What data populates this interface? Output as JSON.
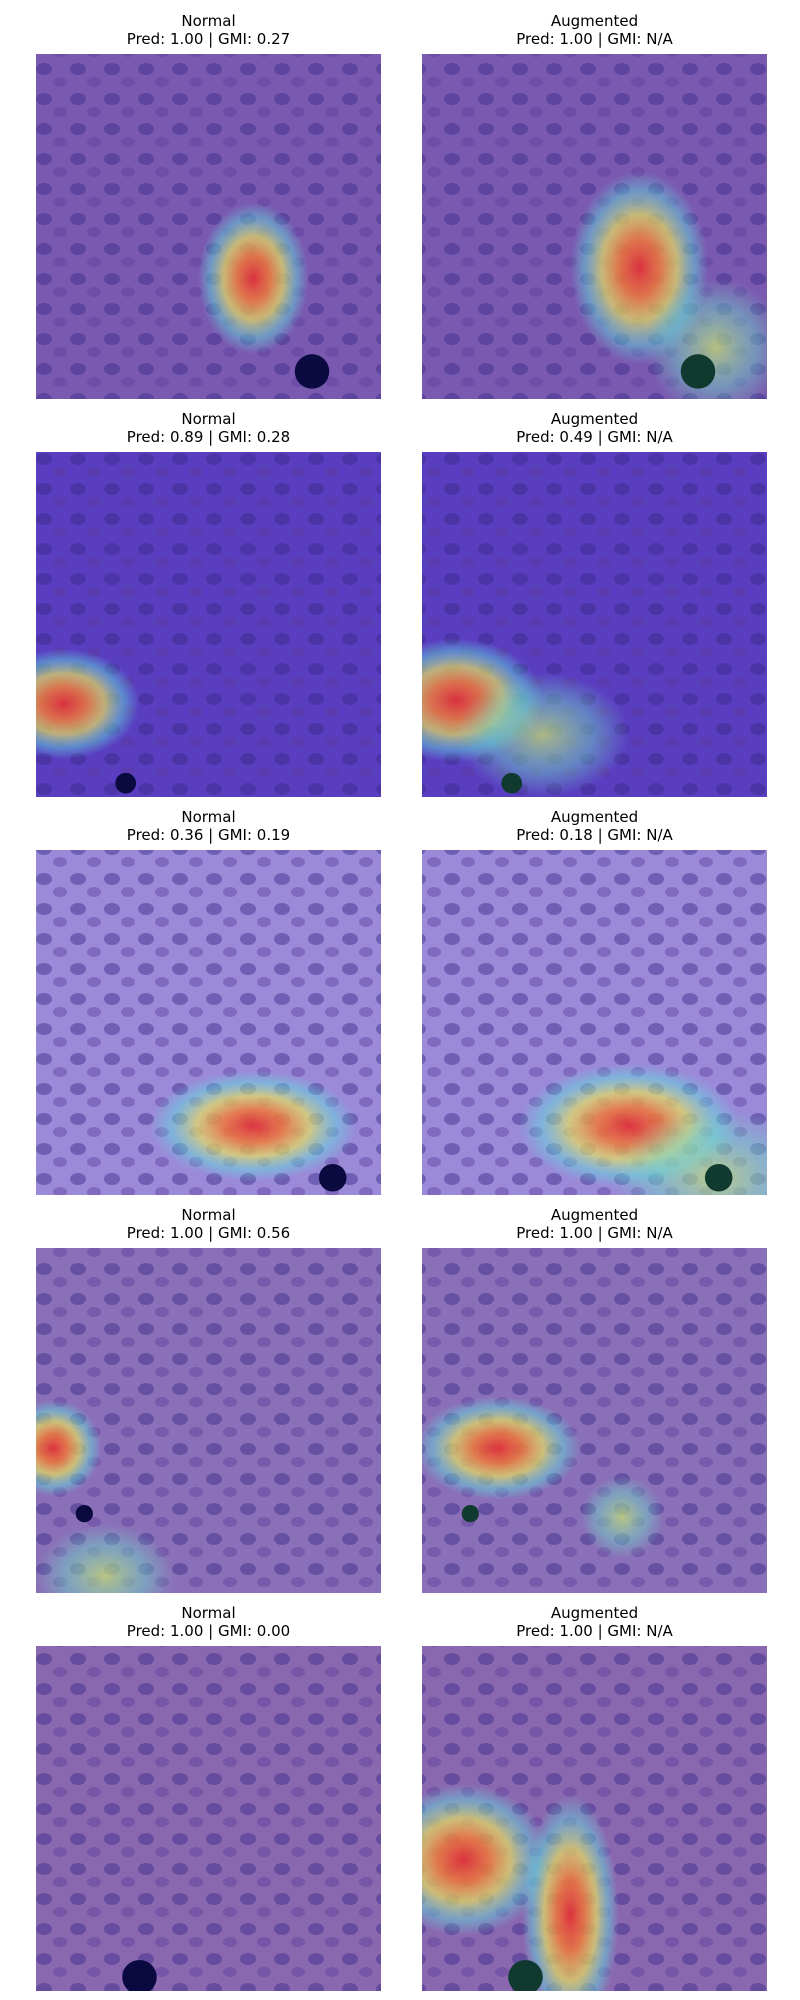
{
  "panels": [
    {
      "title": "Normal",
      "subtitle": "Pred: 1.00 | GMI: 0.27"
    },
    {
      "title": "Augmented",
      "subtitle": "Pred: 1.00 | GMI: N/A"
    },
    {
      "title": "Normal",
      "subtitle": "Pred: 0.89 | GMI: 0.28"
    },
    {
      "title": "Augmented",
      "subtitle": "Pred: 0.49 | GMI: N/A"
    },
    {
      "title": "Normal",
      "subtitle": "Pred: 0.36 | GMI: 0.19"
    },
    {
      "title": "Augmented",
      "subtitle": "Pred: 0.18 | GMI: N/A"
    },
    {
      "title": "Normal",
      "subtitle": "Pred: 1.00 | GMI: 0.56"
    },
    {
      "title": "Augmented",
      "subtitle": "Pred: 1.00 | GMI: N/A"
    },
    {
      "title": "Normal",
      "subtitle": "Pred: 1.00 | GMI: 0.00"
    },
    {
      "title": "Augmented",
      "subtitle": "Pred: 1.00 | GMI: N/A"
    }
  ]
}
